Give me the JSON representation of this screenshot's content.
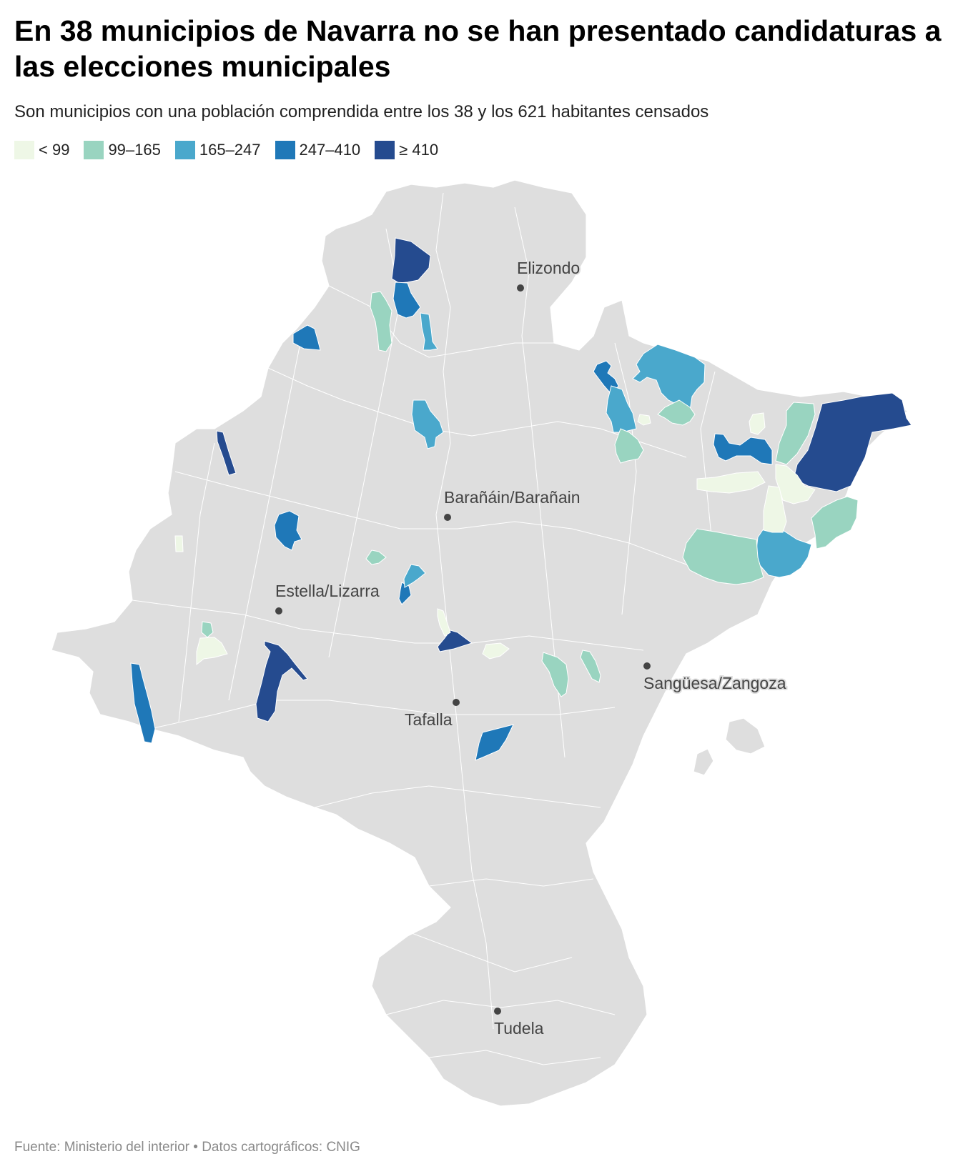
{
  "title": "En 38 municipios de Navarra no se han presentado candidaturas a las elecciones municipales",
  "subtitle": "Son municipios con una población comprendida entre los 38 y los 621 habitantes censados",
  "legend": [
    {
      "label": "< 99",
      "color": "#eef7e6"
    },
    {
      "label": "99–165",
      "color": "#99d4c0"
    },
    {
      "label": "165–247",
      "color": "#4aa8cc"
    },
    {
      "label": "247–410",
      "color": "#1f78b8"
    },
    {
      "label": "≥ 410",
      "color": "#254b8f"
    }
  ],
  "cities": [
    {
      "name": "Elizondo"
    },
    {
      "name": "Barañáin/Barañain"
    },
    {
      "name": "Estella/Lizarra"
    },
    {
      "name": "Sangüesa/Zangoza"
    },
    {
      "name": "Tafalla"
    },
    {
      "name": "Tudela"
    }
  ],
  "source": "Fuente: Ministerio del interior • Datos cartográficos: CNIG"
}
